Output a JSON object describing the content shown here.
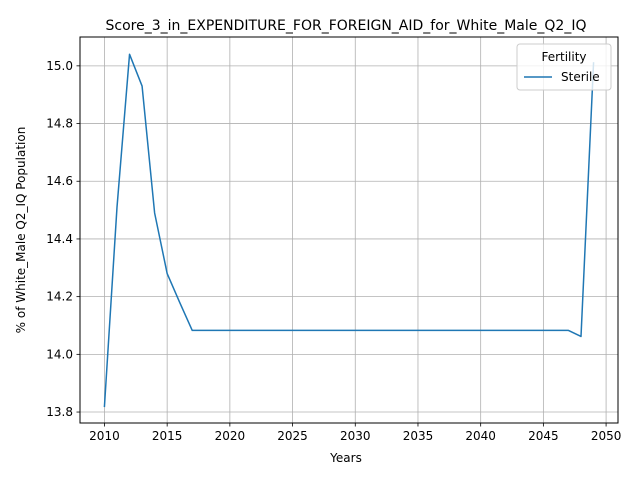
{
  "chart_data": {
    "type": "line",
    "title": "Score_3_in_EXPENDITURE_FOR_FOREIGN_AID_for_White_Male_Q2_IQ",
    "xlabel": "Years",
    "ylabel": "% of White_Male Q2_IQ Population",
    "xlim": [
      2008.05,
      2050.95
    ],
    "ylim": [
      13.762,
      15.1
    ],
    "x_ticks": [
      2010,
      2015,
      2020,
      2025,
      2030,
      2035,
      2040,
      2045,
      2050
    ],
    "y_ticks": [
      13.8,
      14.0,
      14.2,
      14.4,
      14.6,
      14.8,
      15.0
    ],
    "y_tick_labels": [
      "13.8",
      "14.0",
      "14.2",
      "14.4",
      "14.6",
      "14.8",
      "15.0"
    ],
    "grid": true,
    "legend": {
      "title": "Fertility",
      "placement": "top-right"
    },
    "series": [
      {
        "name": "Sterile",
        "color": "#1f77b4",
        "x": [
          2010,
          2011,
          2012,
          2013,
          2014,
          2015,
          2016,
          2017,
          2018,
          2019,
          2020,
          2021,
          2022,
          2023,
          2024,
          2025,
          2026,
          2027,
          2028,
          2029,
          2030,
          2031,
          2032,
          2033,
          2034,
          2035,
          2036,
          2037,
          2038,
          2039,
          2040,
          2041,
          2042,
          2043,
          2044,
          2045,
          2046,
          2047,
          2048,
          2049
        ],
        "y": [
          13.82,
          14.51,
          15.04,
          14.93,
          14.49,
          14.28,
          14.18,
          14.083,
          14.083,
          14.083,
          14.083,
          14.083,
          14.083,
          14.083,
          14.083,
          14.083,
          14.083,
          14.083,
          14.083,
          14.083,
          14.083,
          14.083,
          14.083,
          14.083,
          14.083,
          14.083,
          14.083,
          14.083,
          14.083,
          14.083,
          14.083,
          14.083,
          14.083,
          14.083,
          14.083,
          14.083,
          14.083,
          14.083,
          14.062,
          15.01
        ]
      }
    ]
  }
}
